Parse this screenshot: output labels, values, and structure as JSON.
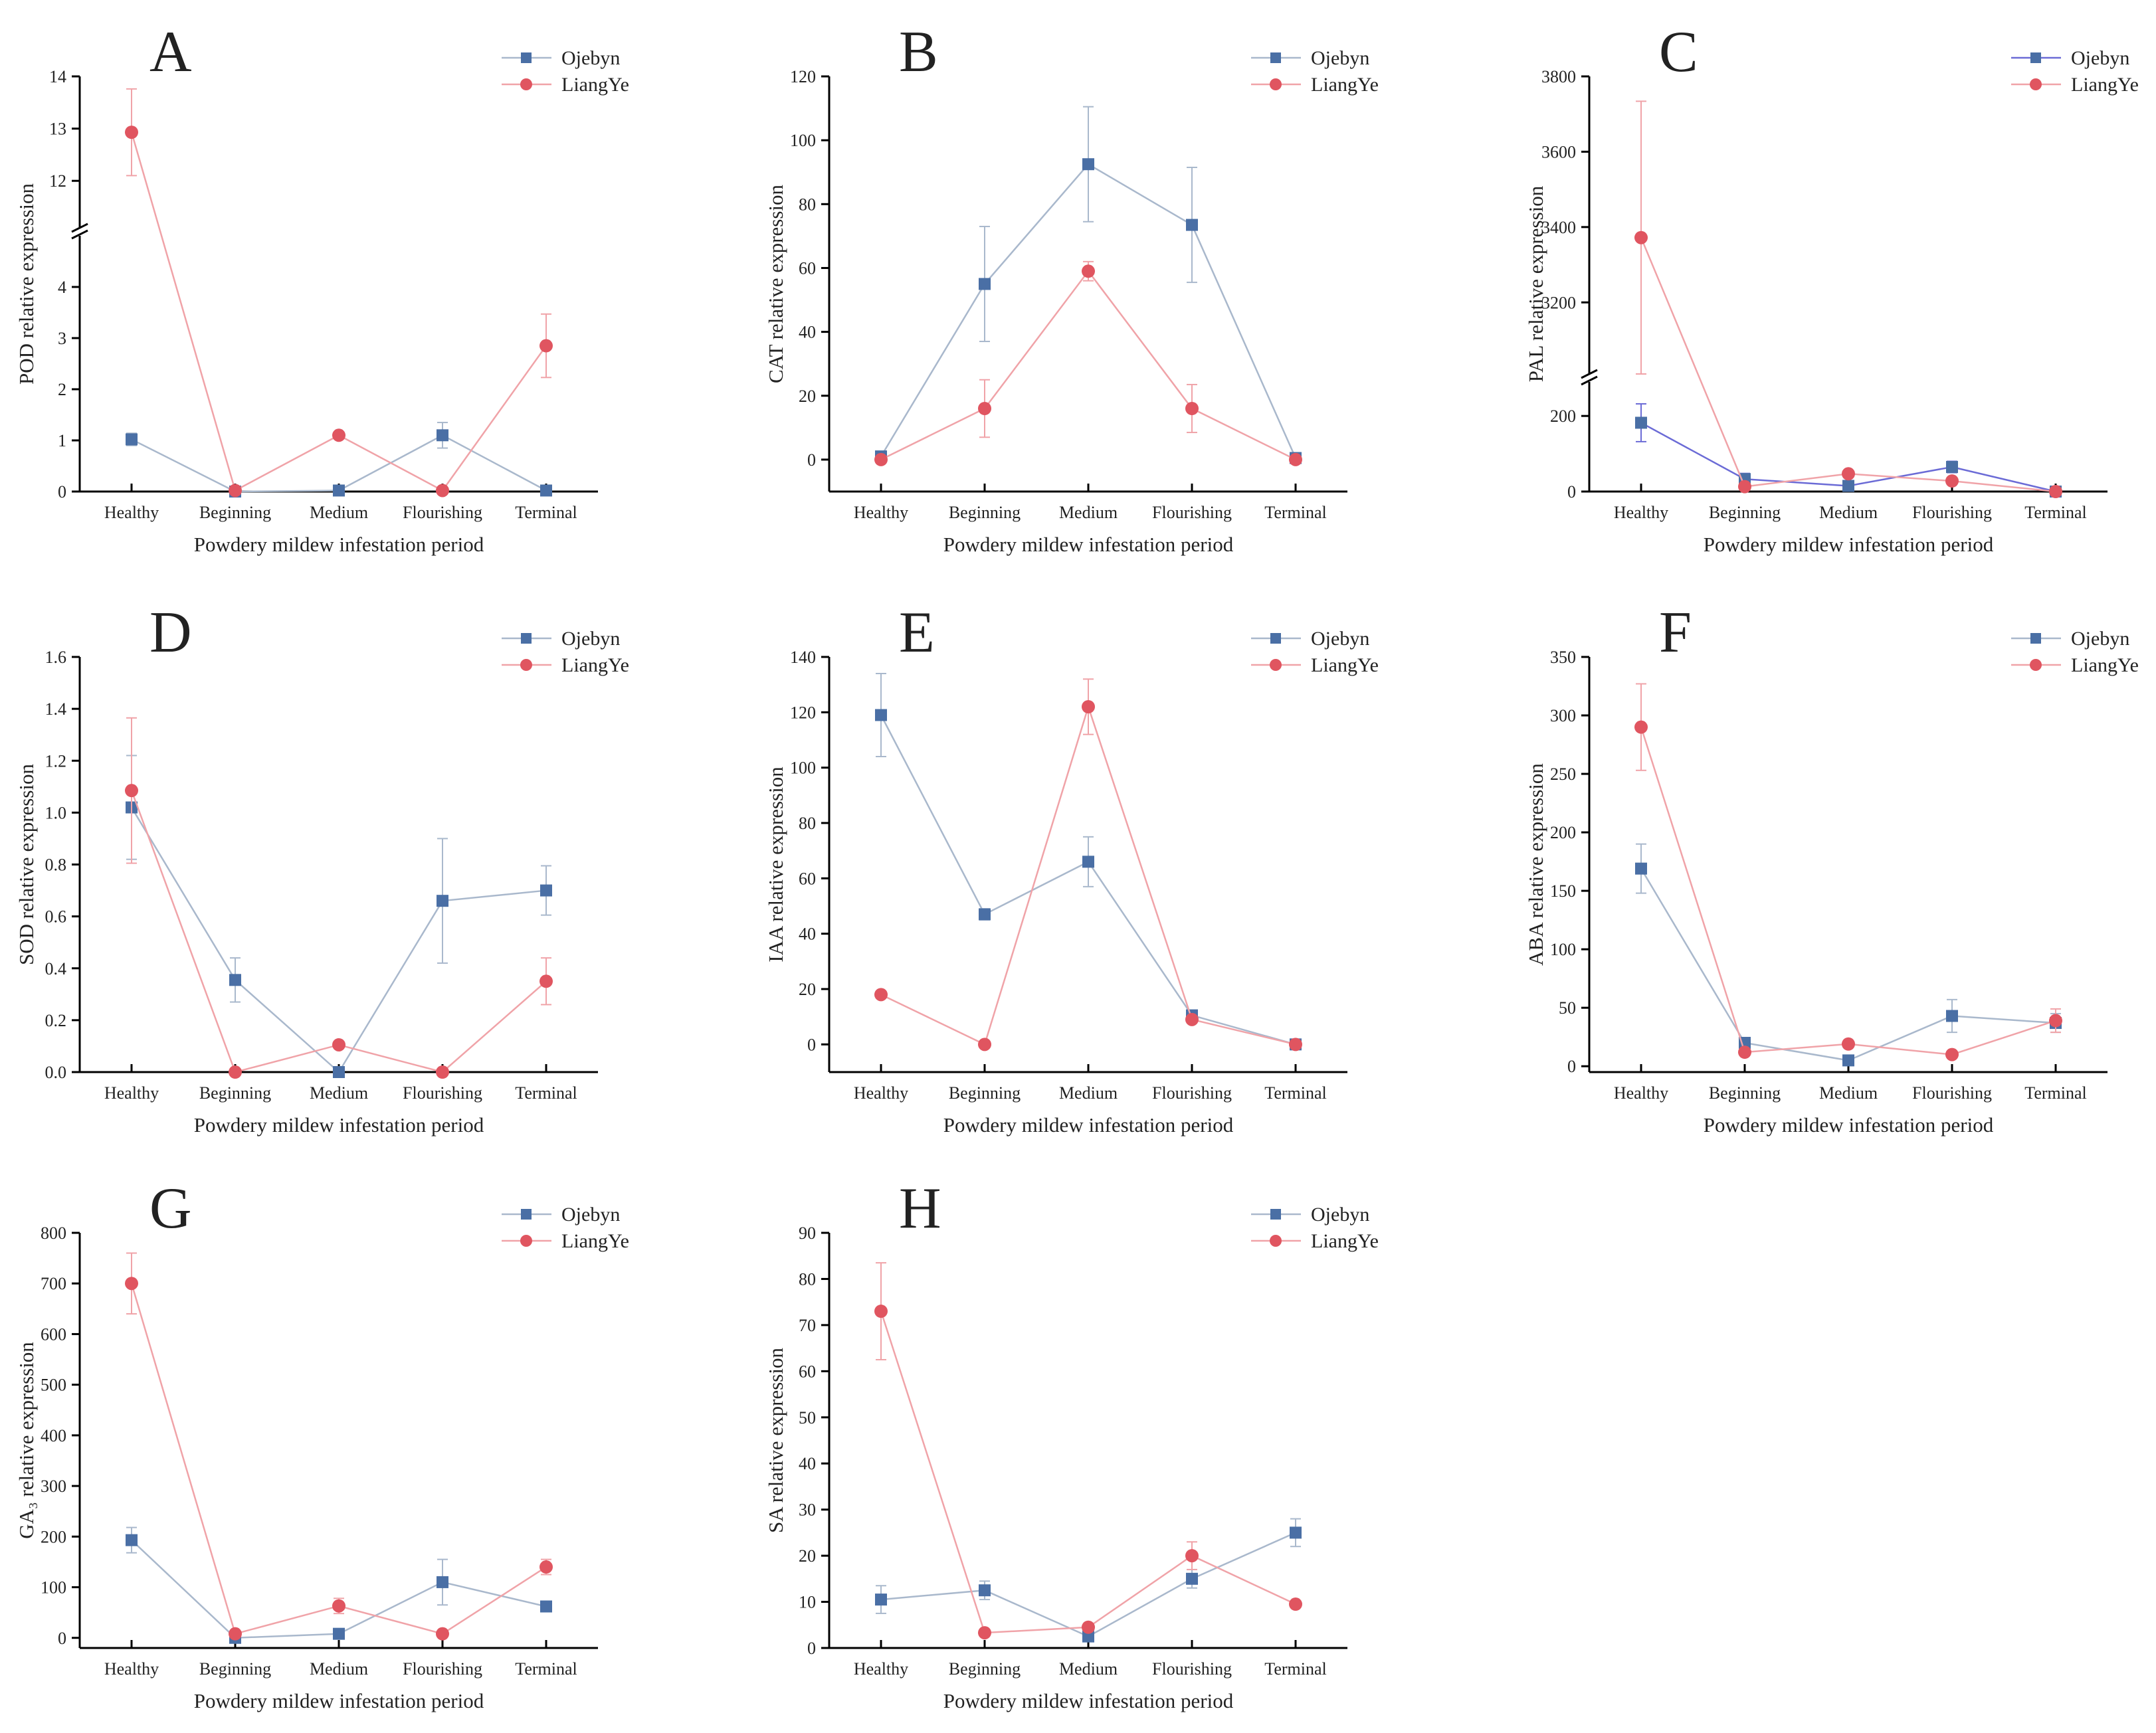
{
  "chart_data": [
    {
      "id": "A",
      "type": "line",
      "title": "A",
      "ylabel": "POD relative expression",
      "xlabel": "Powdery mildew infestation period",
      "categories": [
        "Healthy",
        "Beginning",
        "Medium",
        "Flourishing",
        "Terminal"
      ],
      "y_break": {
        "lower": [
          0,
          5
        ],
        "upper": [
          11.1,
          14
        ]
      },
      "yticks": [
        0,
        1,
        2,
        3,
        4,
        12,
        13,
        14
      ],
      "series": [
        {
          "name": "Ojebyn",
          "values": [
            1.02,
            0,
            0.02,
            1.1,
            0.02
          ],
          "errors": [
            0.12,
            0,
            0,
            0.25,
            0
          ]
        },
        {
          "name": "LiangYe",
          "values": [
            12.93,
            0.02,
            1.1,
            0.02,
            2.85
          ],
          "errors": [
            0.83,
            0,
            0,
            0,
            0.62
          ]
        }
      ]
    },
    {
      "id": "B",
      "type": "line",
      "title": "B",
      "ylabel": "CAT relative expression",
      "xlabel": "Powdery mildew infestation period",
      "categories": [
        "Healthy",
        "Beginning",
        "Medium",
        "Flourishing",
        "Terminal"
      ],
      "ylim": [
        -10,
        120
      ],
      "yticks": [
        0,
        20,
        40,
        60,
        80,
        100,
        120
      ],
      "series": [
        {
          "name": "Ojebyn",
          "values": [
            1,
            55,
            92.5,
            73.5,
            0.5
          ],
          "errors": [
            0,
            18,
            18,
            18,
            0
          ]
        },
        {
          "name": "LiangYe",
          "values": [
            0,
            16,
            59,
            16,
            0
          ],
          "errors": [
            0,
            9,
            3,
            7.5,
            0
          ]
        }
      ]
    },
    {
      "id": "C",
      "type": "line",
      "title": "C",
      "ylabel": "PAL relative expression",
      "xlabel": "Powdery mildew infestation period",
      "categories": [
        "Healthy",
        "Beginning",
        "Medium",
        "Flourishing",
        "Terminal"
      ],
      "y_break": {
        "lower": [
          0,
          290
        ],
        "upper": [
          3010,
          3800
        ]
      },
      "yticks": [
        0,
        200,
        3200,
        3400,
        3600,
        3800
      ],
      "series": [
        {
          "name": "Ojebyn",
          "values": [
            182,
            33,
            15,
            65,
            0
          ],
          "errors": [
            50,
            15,
            0,
            15,
            0
          ]
        },
        {
          "name": "LiangYe",
          "values": [
            3372,
            13,
            47,
            28,
            0
          ],
          "errors": [
            362,
            0,
            0,
            0,
            0
          ]
        }
      ]
    },
    {
      "id": "D",
      "type": "line",
      "title": "D",
      "ylabel": "SOD relative expression",
      "xlabel": "Powdery mildew infestation period",
      "categories": [
        "Healthy",
        "Beginning",
        "Medium",
        "Flourishing",
        "Terminal"
      ],
      "ylim": [
        0,
        1.6
      ],
      "yticks": [
        0,
        0.2,
        0.4,
        0.6,
        0.8,
        1.0,
        1.2,
        1.4,
        1.6
      ],
      "series": [
        {
          "name": "Ojebyn",
          "values": [
            1.02,
            0.355,
            0,
            0.66,
            0.7
          ],
          "errors": [
            0.2,
            0.085,
            0,
            0.24,
            0.095
          ]
        },
        {
          "name": "LiangYe",
          "values": [
            1.085,
            0,
            0.105,
            0,
            0.35
          ],
          "errors": [
            0.28,
            0,
            0,
            0,
            0.09
          ]
        }
      ]
    },
    {
      "id": "E",
      "type": "line",
      "title": "E",
      "ylabel": "IAA relative expression",
      "xlabel": "Powdery mildew infestation period",
      "categories": [
        "Healthy",
        "Beginning",
        "Medium",
        "Flourishing",
        "Terminal"
      ],
      "ylim": [
        -10,
        140
      ],
      "yticks": [
        0,
        20,
        40,
        60,
        80,
        100,
        120,
        140
      ],
      "series": [
        {
          "name": "Ojebyn",
          "values": [
            119,
            47,
            66,
            10.5,
            0
          ],
          "errors": [
            15,
            2,
            9,
            0,
            0
          ]
        },
        {
          "name": "LiangYe",
          "values": [
            18,
            0,
            122,
            9,
            0
          ],
          "errors": [
            0,
            0,
            10,
            0,
            0
          ]
        }
      ]
    },
    {
      "id": "F",
      "type": "line",
      "title": "F",
      "ylabel": "ABA relative expression",
      "xlabel": "Powdery mildew infestation period",
      "categories": [
        "Healthy",
        "Beginning",
        "Medium",
        "Flourishing",
        "Terminal"
      ],
      "ylim": [
        -5,
        350
      ],
      "yticks": [
        0,
        50,
        100,
        150,
        200,
        250,
        300,
        350
      ],
      "series": [
        {
          "name": "Ojebyn",
          "values": [
            169,
            20,
            5,
            43,
            37
          ],
          "errors": [
            21,
            0,
            0,
            14,
            8
          ]
        },
        {
          "name": "LiangYe",
          "values": [
            290,
            12,
            19,
            10,
            39
          ],
          "errors": [
            37,
            0,
            0,
            0,
            10
          ]
        }
      ]
    },
    {
      "id": "G",
      "type": "line",
      "title": "G",
      "ylabel": "GA₃ relative expression",
      "xlabel": "Powdery mildew infestation period",
      "categories": [
        "Healthy",
        "Beginning",
        "Medium",
        "Flourishing",
        "Terminal"
      ],
      "ylim": [
        -20,
        800
      ],
      "yticks": [
        0,
        100,
        200,
        300,
        400,
        500,
        600,
        700,
        800
      ],
      "series": [
        {
          "name": "Ojebyn",
          "values": [
            193,
            0,
            8,
            110,
            62
          ],
          "errors": [
            25,
            0,
            0,
            45,
            0
          ]
        },
        {
          "name": "LiangYe",
          "values": [
            700,
            8,
            63,
            8,
            140
          ],
          "errors": [
            60,
            0,
            15,
            0,
            15
          ]
        }
      ]
    },
    {
      "id": "H",
      "type": "line",
      "title": "H",
      "ylabel": "SA relative expression",
      "xlabel": "Powdery mildew infestation period",
      "categories": [
        "Healthy",
        "Beginning",
        "Medium",
        "Flourishing",
        "Terminal"
      ],
      "ylim": [
        0,
        90
      ],
      "yticks": [
        0,
        10,
        20,
        30,
        40,
        50,
        60,
        70,
        80,
        90
      ],
      "series": [
        {
          "name": "Ojebyn",
          "values": [
            10.5,
            12.5,
            2.5,
            15,
            25
          ],
          "errors": [
            3,
            2,
            0,
            2,
            3
          ]
        },
        {
          "name": "LiangYe",
          "values": [
            73,
            3.3,
            4.5,
            20,
            9.5
          ],
          "errors": [
            10.5,
            0,
            0,
            3,
            0
          ]
        }
      ]
    }
  ],
  "colors": {
    "Ojebyn_marker": "#4a6fa5",
    "Ojebyn_line": "#a9b8cc",
    "LiangYe_marker": "#e05560",
    "LiangYe_line": "#f0a3a8",
    "C_Ojebyn_line": "#6b6bd6"
  }
}
